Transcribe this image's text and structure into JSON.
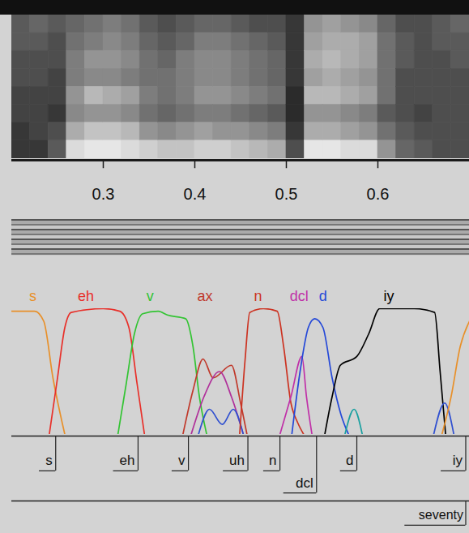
{
  "chart_data": {
    "type": "line",
    "xlim": [
      0.2,
      0.7
    ],
    "xticks": [
      0.3,
      0.4,
      0.5,
      0.6
    ],
    "ylim": [
      0,
      1
    ],
    "tick_labels": "x",
    "spectrogram": {
      "bins": [
        0.2,
        0.22,
        0.24,
        0.26,
        0.28,
        0.3,
        0.32,
        0.34,
        0.36,
        0.38,
        0.4,
        0.42,
        0.44,
        0.46,
        0.48,
        0.5,
        0.52,
        0.54,
        0.56,
        0.58,
        0.6,
        0.62,
        0.64,
        0.66,
        0.68,
        0.7
      ],
      "zlim": [
        0,
        1
      ],
      "cells": [
        [
          0.35,
          0.35,
          0.3,
          0.3,
          0.25,
          0.25,
          0.2,
          0.2
        ],
        [
          0.4,
          0.35,
          0.3,
          0.3,
          0.25,
          0.25,
          0.25,
          0.2
        ],
        [
          0.35,
          0.3,
          0.3,
          0.25,
          0.25,
          0.2,
          0.3,
          0.35
        ],
        [
          0.4,
          0.45,
          0.5,
          0.5,
          0.6,
          0.55,
          0.7,
          0.9
        ],
        [
          0.45,
          0.5,
          0.6,
          0.55,
          0.75,
          0.6,
          0.8,
          0.95
        ],
        [
          0.5,
          0.55,
          0.6,
          0.55,
          0.7,
          0.6,
          0.8,
          0.95
        ],
        [
          0.45,
          0.5,
          0.55,
          0.5,
          0.65,
          0.55,
          0.75,
          0.9
        ],
        [
          0.35,
          0.4,
          0.45,
          0.45,
          0.5,
          0.45,
          0.6,
          0.85
        ],
        [
          0.3,
          0.35,
          0.4,
          0.45,
          0.45,
          0.4,
          0.55,
          0.8
        ],
        [
          0.35,
          0.4,
          0.5,
          0.5,
          0.5,
          0.45,
          0.6,
          0.8
        ],
        [
          0.4,
          0.5,
          0.55,
          0.55,
          0.6,
          0.5,
          0.65,
          0.85
        ],
        [
          0.4,
          0.5,
          0.55,
          0.55,
          0.6,
          0.5,
          0.6,
          0.85
        ],
        [
          0.35,
          0.45,
          0.5,
          0.5,
          0.55,
          0.45,
          0.6,
          0.8
        ],
        [
          0.3,
          0.4,
          0.45,
          0.45,
          0.5,
          0.4,
          0.55,
          0.75
        ],
        [
          0.3,
          0.35,
          0.4,
          0.4,
          0.45,
          0.35,
          0.5,
          0.7
        ],
        [
          0.2,
          0.2,
          0.2,
          0.2,
          0.15,
          0.15,
          0.2,
          0.3
        ],
        [
          0.6,
          0.65,
          0.7,
          0.65,
          0.75,
          0.6,
          0.7,
          0.95
        ],
        [
          0.65,
          0.7,
          0.75,
          0.7,
          0.75,
          0.6,
          0.7,
          0.95
        ],
        [
          0.6,
          0.7,
          0.7,
          0.65,
          0.7,
          0.55,
          0.65,
          0.9
        ],
        [
          0.55,
          0.65,
          0.65,
          0.6,
          0.65,
          0.5,
          0.6,
          0.9
        ],
        [
          0.4,
          0.45,
          0.45,
          0.45,
          0.45,
          0.35,
          0.45,
          0.6
        ],
        [
          0.3,
          0.35,
          0.35,
          0.3,
          0.3,
          0.3,
          0.35,
          0.4
        ],
        [
          0.3,
          0.3,
          0.3,
          0.3,
          0.3,
          0.25,
          0.3,
          0.35
        ],
        [
          0.35,
          0.35,
          0.3,
          0.3,
          0.3,
          0.3,
          0.3,
          0.3
        ],
        [
          0.4,
          0.35,
          0.35,
          0.3,
          0.3,
          0.3,
          0.3,
          0.3
        ]
      ]
    },
    "series": [
      {
        "name": "s",
        "color": "#e8902a",
        "label_at": 0.223,
        "x": [
          0.2,
          0.225,
          0.235,
          0.245,
          0.258
        ],
        "values": [
          0.98,
          0.98,
          0.9,
          0.45,
          0
        ]
      },
      {
        "name": "eh",
        "color": "#e8302a",
        "label_at": 0.281,
        "x": [
          0.241,
          0.25,
          0.258,
          0.265,
          0.3,
          0.318,
          0.328,
          0.337,
          0.345
        ],
        "values": [
          0,
          0.45,
          0.85,
          0.97,
          1,
          0.98,
          0.85,
          0.4,
          0
        ]
      },
      {
        "name": "v",
        "color": "#33c433",
        "label_at": 0.351,
        "x": [
          0.316,
          0.325,
          0.334,
          0.343,
          0.36,
          0.37,
          0.39,
          0.398,
          0.405,
          0.413
        ],
        "values": [
          0,
          0.4,
          0.8,
          0.96,
          0.98,
          0.95,
          0.92,
          0.7,
          0.3,
          0
        ]
      },
      {
        "name": "ax",
        "color": "#c0392b",
        "label_at": 0.411,
        "x": [
          0.387,
          0.398,
          0.409,
          0.42,
          0.44,
          0.45,
          0.457
        ],
        "values": [
          0,
          0.35,
          0.6,
          0.45,
          0.55,
          0.25,
          0
        ]
      },
      {
        "name": null,
        "color": "#b0309a",
        "x": [
          0.396,
          0.41,
          0.427,
          0.44,
          0.453
        ],
        "values": [
          0,
          0.3,
          0.5,
          0.3,
          0
        ]
      },
      {
        "name": null,
        "color": "#3050d0",
        "x": [
          0.404,
          0.416,
          0.43,
          0.442,
          0.453
        ],
        "values": [
          0,
          0.2,
          0.08,
          0.2,
          0
        ]
      },
      {
        "name": "n",
        "color": "#cc3322",
        "label_at": 0.469,
        "x": [
          0.449,
          0.455,
          0.46,
          0.475,
          0.49,
          0.497,
          0.505,
          0.512,
          0.519
        ],
        "values": [
          0,
          0.6,
          0.97,
          1,
          0.98,
          0.7,
          0.25,
          0.1,
          0
        ]
      },
      {
        "name": "dcl",
        "color": "#c030a8",
        "label_at": 0.514,
        "x": [
          0.493,
          0.505,
          0.517,
          0.522,
          0.528
        ],
        "values": [
          0,
          0.3,
          0.62,
          0.3,
          0
        ]
      },
      {
        "name": "d",
        "color": "#2448d8",
        "label_at": 0.54,
        "x": [
          0.506,
          0.515,
          0.524,
          0.531,
          0.54,
          0.55,
          0.56,
          0.568
        ],
        "values": [
          0,
          0.5,
          0.85,
          0.92,
          0.85,
          0.45,
          0.15,
          0
        ]
      },
      {
        "name": "iy",
        "color": "#000000",
        "label_at": 0.612,
        "x": [
          0.542,
          0.55,
          0.559,
          0.577,
          0.59,
          0.602,
          0.64,
          0.662,
          0.668,
          0.674
        ],
        "values": [
          0,
          0.3,
          0.55,
          0.62,
          0.8,
          1,
          1,
          0.97,
          0.5,
          0
        ]
      },
      {
        "name": null,
        "color": "#1aa0a0",
        "x": [
          0.564,
          0.574,
          0.583
        ],
        "values": [
          0,
          0.2,
          0
        ]
      },
      {
        "name": null,
        "color": "#3050d0",
        "x": [
          0.661,
          0.673,
          0.683
        ],
        "values": [
          0,
          0.25,
          0
        ]
      },
      {
        "name": null,
        "color": "#e8902a",
        "x": [
          0.67,
          0.68,
          0.69,
          0.7
        ],
        "values": [
          0,
          0.3,
          0.7,
          0.9
        ]
      }
    ],
    "segments": [
      {
        "label": "s",
        "end": 0.248
      },
      {
        "label": "eh",
        "end": 0.338
      },
      {
        "label": "v",
        "end": 0.393
      },
      {
        "label": "uh",
        "end": 0.458
      },
      {
        "label": "n",
        "end": 0.493
      },
      {
        "label": "dcl",
        "end": 0.533
      },
      {
        "label": "d",
        "end": 0.577
      },
      {
        "label": "iy",
        "end": 0.696
      }
    ],
    "words": [
      {
        "label": "seventy",
        "end": 0.696
      }
    ]
  }
}
